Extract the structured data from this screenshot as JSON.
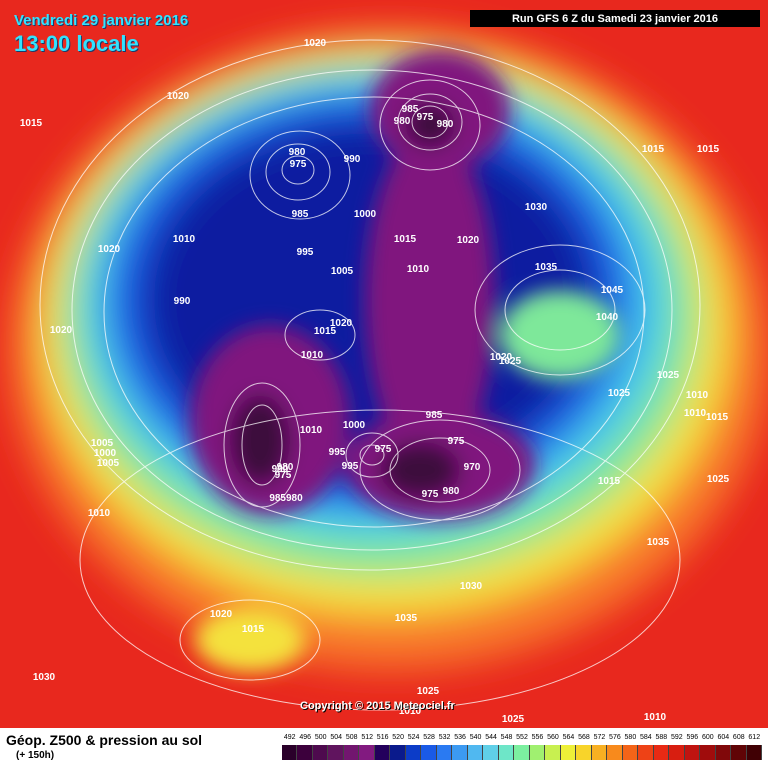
{
  "header": {
    "date_label": "Vendredi 29 janvier 2016",
    "time_label": "13:00 locale",
    "run_label": "Run GFS 6 Z du Samedi 23 janvier 2016"
  },
  "copyright": "Copyright © 2015 Meteociel.fr",
  "footer": {
    "title": "Géop. Z500 & pression au sol",
    "forecast_hour": "(+ 150h)"
  },
  "legend": {
    "ticks": [
      "492",
      "496",
      "500",
      "504",
      "508",
      "512",
      "516",
      "520",
      "524",
      "528",
      "532",
      "536",
      "540",
      "544",
      "548",
      "552",
      "556",
      "560",
      "564",
      "568",
      "572",
      "576",
      "580",
      "584",
      "588",
      "592",
      "596",
      "600",
      "604",
      "608",
      "612"
    ],
    "colors": [
      "#2a002a",
      "#3c003c",
      "#4e0a4e",
      "#60145e",
      "#72166f",
      "#821a80",
      "#23005c",
      "#0a1a8c",
      "#0c3cc8",
      "#1a5ae6",
      "#2a7af2",
      "#3c9af2",
      "#50b8f0",
      "#60d0e8",
      "#6ee6c8",
      "#7cf0a0",
      "#a0f070",
      "#c8f050",
      "#eef038",
      "#f8d42a",
      "#f8b022",
      "#f88a1c",
      "#f46418",
      "#ee4216",
      "#e82a14",
      "#d81e10",
      "#c01410",
      "#a00c0c",
      "#80080a",
      "#600406",
      "#400004"
    ]
  },
  "map": {
    "colors": {
      "outer": "#e8281e",
      "orange": "#f8782a",
      "yellow": "#f4e23c",
      "green": "#7ee89a",
      "cyan": "#42c8ee",
      "blue": "#1a5ae6",
      "navy": "#0a1fa0",
      "purple": "#80147e",
      "dark_purple": "#3c0a3c",
      "isobar": "#ffffff"
    },
    "pressure_labels": [
      "1020",
      "1020",
      "1015",
      "980",
      "975",
      "980",
      "985",
      "975",
      "980",
      "990",
      "1030",
      "1015",
      "1015",
      "1000",
      "985",
      "1015",
      "1020",
      "1035",
      "1010",
      "995",
      "1005",
      "1010",
      "1045",
      "1020",
      "990",
      "1040",
      "1020",
      "1015",
      "1010",
      "1020",
      "1025",
      "1020",
      "1025",
      "1025",
      "1010",
      "1010",
      "1000",
      "985",
      "1005",
      "1000",
      "975",
      "995",
      "975",
      "1005",
      "1015",
      "995",
      "990",
      "970",
      "980",
      "975",
      "975",
      "980",
      "1015",
      "1010",
      "985980",
      "1025",
      "1010",
      "1035",
      "1030",
      "1020",
      "1035",
      "1015",
      "1030",
      "1025",
      "1010",
      "1025",
      "1010"
    ]
  }
}
